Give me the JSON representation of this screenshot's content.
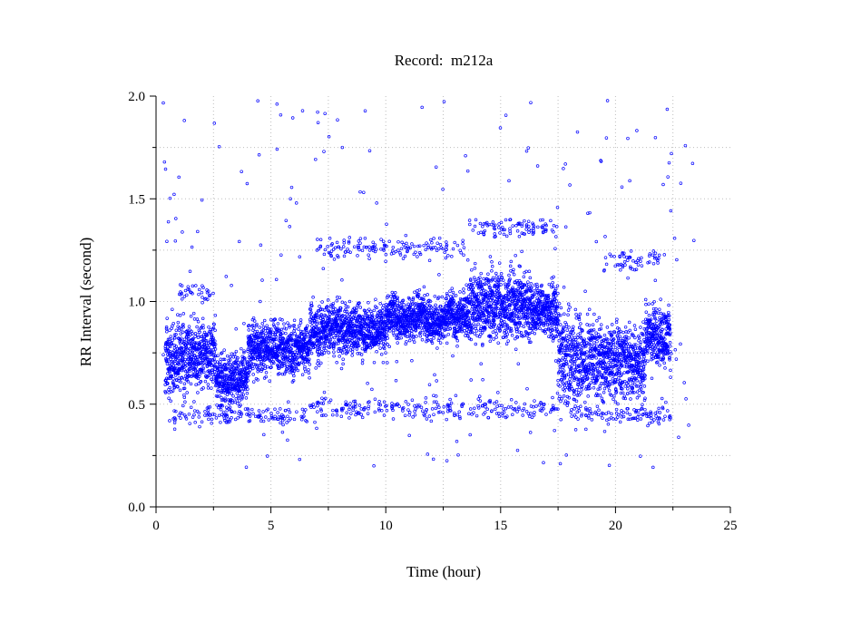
{
  "chart_data": {
    "type": "scatter",
    "title": "Record:  m212a",
    "xlabel": "Time (hour)",
    "ylabel": "RR Interval (second)",
    "xlim": [
      0,
      25
    ],
    "ylim": [
      0,
      2.0
    ],
    "x_ticks": [
      0,
      5,
      10,
      15,
      20,
      25
    ],
    "x_tick_labels": [
      "0",
      "5",
      "10",
      "15",
      "20",
      "25"
    ],
    "y_ticks": [
      0.0,
      0.5,
      1.0,
      1.5,
      2.0
    ],
    "y_tick_labels": [
      "0.0",
      "0.5",
      "1.0",
      "1.5",
      "2.0"
    ],
    "grid": true,
    "marker_color": "#0000ff",
    "series": [
      {
        "segments": [
          {
            "x_start": 0.4,
            "x_end": 1.2,
            "y_center": 0.72,
            "y_spread": 0.09
          },
          {
            "x_start": 1.2,
            "x_end": 2.6,
            "y_center": 0.74,
            "y_spread": 0.08
          },
          {
            "x_start": 2.6,
            "x_end": 4.0,
            "y_center": 0.62,
            "y_spread": 0.06
          },
          {
            "x_start": 4.0,
            "x_end": 6.7,
            "y_center": 0.78,
            "y_spread": 0.06
          },
          {
            "x_start": 6.7,
            "x_end": 10.0,
            "y_center": 0.86,
            "y_spread": 0.06
          },
          {
            "x_start": 10.0,
            "x_end": 13.6,
            "y_center": 0.92,
            "y_spread": 0.05
          },
          {
            "x_start": 13.6,
            "x_end": 16.4,
            "y_center": 0.98,
            "y_spread": 0.08
          },
          {
            "x_start": 16.4,
            "x_end": 17.5,
            "y_center": 0.95,
            "y_spread": 0.06
          },
          {
            "x_start": 17.5,
            "x_end": 18.5,
            "y_center": 0.72,
            "y_spread": 0.12
          },
          {
            "x_start": 18.5,
            "x_end": 21.3,
            "y_center": 0.72,
            "y_spread": 0.09
          },
          {
            "x_start": 21.3,
            "x_end": 22.4,
            "y_center": 0.85,
            "y_spread": 0.07
          }
        ],
        "bands": [
          {
            "x_start": 0.4,
            "x_end": 6.7,
            "y_center": 0.44
          },
          {
            "x_start": 6.7,
            "x_end": 17.5,
            "y_center": 0.48
          },
          {
            "x_start": 18.0,
            "x_end": 22.4,
            "y_center": 0.45
          },
          {
            "x_start": 7.0,
            "x_end": 13.5,
            "y_center": 1.26
          },
          {
            "x_start": 13.5,
            "x_end": 17.5,
            "y_center": 1.36
          },
          {
            "x_start": 1.0,
            "x_end": 2.5,
            "y_center": 1.05
          },
          {
            "x_start": 19.5,
            "x_end": 22.0,
            "y_center": 1.2
          }
        ],
        "outlier_range": {
          "x_start": 0.3,
          "x_end": 23.6,
          "y_min": 0.18,
          "y_max": 1.98
        }
      }
    ]
  }
}
